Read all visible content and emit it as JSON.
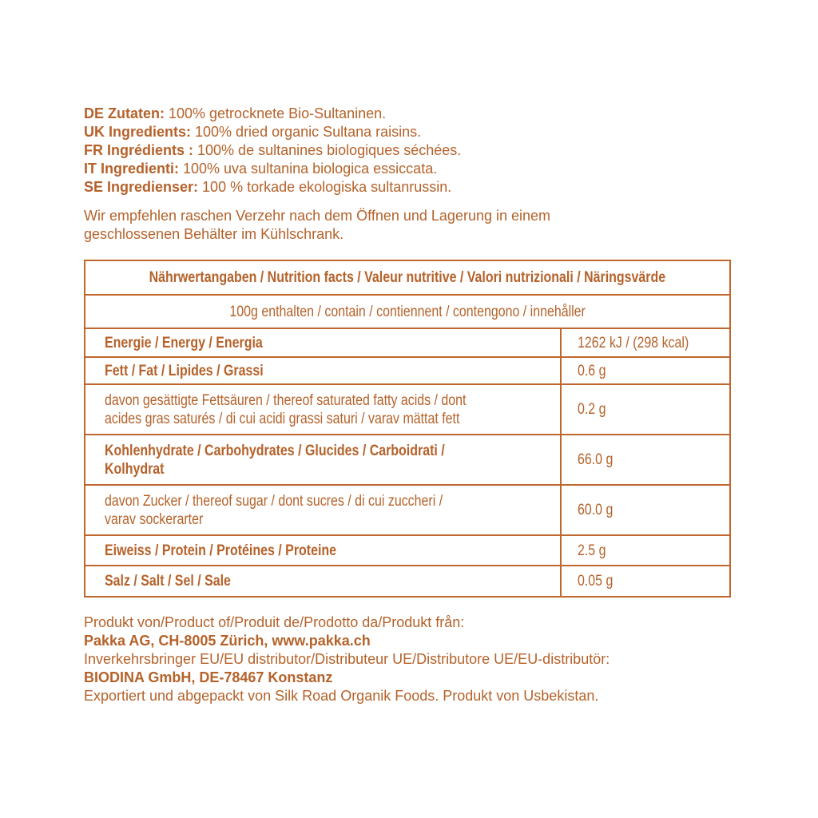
{
  "ingredients": [
    {
      "label": "DE Zutaten:",
      "text": " 100% getrocknete Bio-Sultaninen."
    },
    {
      "label": "UK Ingredients:",
      "text": " 100% dried organic Sultana raisins."
    },
    {
      "label": "FR Ingrédients :",
      "text": " 100% de sultanines biologiques séchées."
    },
    {
      "label": "IT Ingredienti:",
      "text": " 100% uva sultanina biologica essiccata."
    },
    {
      "label": "SE Ingredienser:",
      "text": " 100 % torkade ekologiska sultanrussin."
    }
  ],
  "storage": [
    "Wir empfehlen raschen Verzehr nach dem Öffnen und Lagerung in einem",
    "geschlossenen Behälter im Kühlschrank."
  ],
  "nutrition": {
    "title": "Nährwertangaben / Nutrition facts / Valeur nutritive / Valori nutrizionali / Näringsvärde",
    "per": "100g enthalten / contain / contiennent / contengono / innehåller",
    "rows": [
      {
        "l1": "Energie / Energy / Energia",
        "l2": "",
        "value": "1262 kJ / (298 kcal)",
        "bold": true
      },
      {
        "l1": "Fett / Fat / Lipides / Grassi",
        "l2": "",
        "value": "0.6 g",
        "bold": true
      },
      {
        "l1": "davon gesättigte Fettsäuren / thereof saturated fatty acids / dont",
        "l2": "acides gras saturés / di cui acidi grassi saturi / varav mättat fett",
        "value": "0.2 g",
        "bold": false
      },
      {
        "l1": "Kohlenhydrate / Carbohydrates / Glucides / Carboidrati /",
        "l2": "Kolhydrat",
        "value": "66.0 g",
        "bold": true
      },
      {
        "l1": "davon Zucker / thereof sugar / dont sucres / di cui zuccheri /",
        "l2": "varav sockerarter",
        "value": "60.0 g",
        "bold": false
      },
      {
        "l1": "Eiweiss / Protein / Protéines / Proteine",
        "l2": "",
        "value": "2.5 g",
        "bold": true
      },
      {
        "l1": "Salz / Salt / Sel / Sale",
        "l2": "",
        "value": "0.05 g",
        "bold": true
      }
    ]
  },
  "footer": [
    {
      "text": "Produkt von/Product of/Produit de/Prodotto da/Produkt från:",
      "bold": false
    },
    {
      "text": "Pakka AG, CH-8005 Zürich, www.pakka.ch",
      "bold": true
    },
    {
      "text": "Inverkehrsbringer EU/EU distributor/Distributeur UE/Distributore UE/EU-distributör:",
      "bold": false
    },
    {
      "text": "BIODINA GmbH, DE-78467 Konstanz",
      "bold": true
    },
    {
      "text": "Exportiert und abgepackt von Silk Road Organik Foods. Produkt von Usbekistan.",
      "bold": false
    }
  ],
  "colors": {
    "text": "#b5622a",
    "border": "#c0672d"
  }
}
